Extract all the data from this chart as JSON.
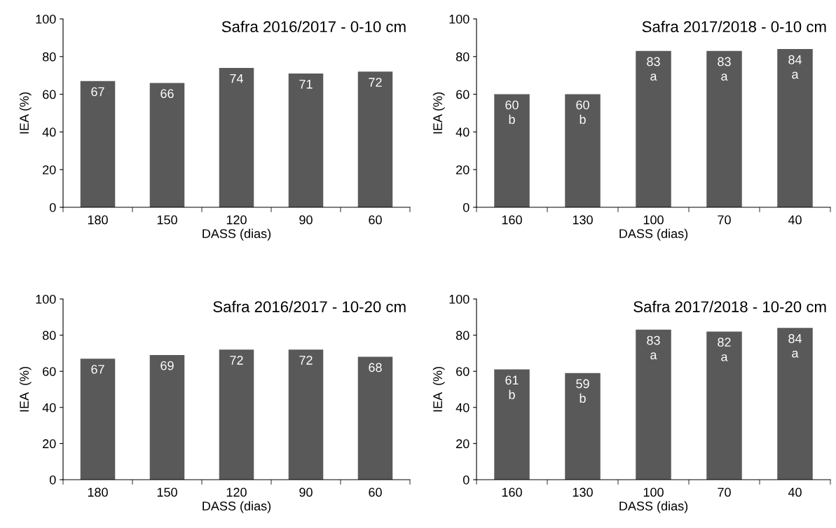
{
  "chart_data": [
    {
      "type": "bar",
      "title": "Safra 2016/2017 - 0-10 cm",
      "xlabel": "DASS (dias)",
      "ylabel": "IEA (%)",
      "categories": [
        "180",
        "150",
        "120",
        "90",
        "60"
      ],
      "values": [
        67,
        66,
        74,
        71,
        72
      ],
      "color": "#595959",
      "ylim": [
        0,
        100
      ],
      "yticks": [
        0,
        20,
        40,
        60,
        80,
        100
      ],
      "data_labels": true,
      "grid": false,
      "legend": false
    },
    {
      "type": "bar",
      "title": "Safra 2017/2018 - 0-10 cm",
      "xlabel": "DASS (dias)",
      "ylabel": "IEA (%)",
      "categories": [
        "160",
        "130",
        "100",
        "70",
        "40"
      ],
      "values": [
        60,
        60,
        83,
        83,
        84
      ],
      "value_labels": [
        "60\nb",
        "60\nb",
        "83\na",
        "83\na",
        "84\na"
      ],
      "color": "#595959",
      "ylim": [
        0,
        100
      ],
      "yticks": [
        0,
        20,
        40,
        60,
        80,
        100
      ],
      "grid": false,
      "legend": false
    },
    {
      "type": "bar",
      "title": "Safra 2016/2017 - 10-20 cm",
      "xlabel": "DASS (dias)",
      "ylabel": "IEA  (%)",
      "categories": [
        "180",
        "150",
        "120",
        "90",
        "60"
      ],
      "values": [
        67,
        69,
        72,
        72,
        68
      ],
      "color": "#595959",
      "ylim": [
        0,
        100
      ],
      "yticks": [
        0,
        20,
        40,
        60,
        80,
        100
      ],
      "data_labels": true,
      "grid": false,
      "legend": false
    },
    {
      "type": "bar",
      "title": "Safra 2017/2018 - 10-20 cm",
      "xlabel": "DASS (dias)",
      "ylabel": "IEA  (%)",
      "categories": [
        "160",
        "130",
        "100",
        "70",
        "40"
      ],
      "values": [
        61,
        59,
        83,
        82,
        84
      ],
      "value_labels": [
        "61\nb",
        "59\nb",
        "83\na",
        "82\na",
        "84\na"
      ],
      "color": "#595959",
      "ylim": [
        0,
        100
      ],
      "yticks": [
        0,
        20,
        40,
        60,
        80,
        100
      ],
      "grid": false,
      "legend": false
    }
  ]
}
